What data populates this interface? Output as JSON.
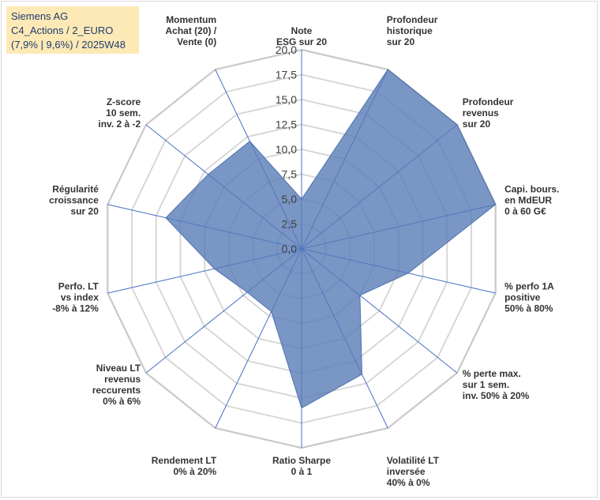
{
  "title_box": {
    "line1": "Siemens AG",
    "line2": "C4_Actions / 2_EURO",
    "line3": "(7,9% | 9,6%) / 2025W48"
  },
  "chart_data": {
    "type": "radar",
    "title": "Siemens AG — C4_Actions / 2_EURO — (7,9% | 9,6%) / 2025W48",
    "rlim": [
      0,
      20
    ],
    "ticks": [
      "0,0",
      "2,5",
      "5,0",
      "7,5",
      "10,0",
      "12,5",
      "15,0",
      "17,5",
      "20,0"
    ],
    "tick_values": [
      0,
      2.5,
      5,
      7.5,
      10,
      12.5,
      15,
      17.5,
      20
    ],
    "axes": [
      [
        "Note",
        "ESG sur 20"
      ],
      [
        "Profondeur",
        "historique",
        "sur 20"
      ],
      [
        "Profondeur",
        "revenus",
        "sur 20"
      ],
      [
        "Capi. bours.",
        "en MdEUR",
        "0 à 60 G€"
      ],
      [
        "% perfo 1A",
        "positive",
        "50% à 80%"
      ],
      [
        "% perte max.",
        "sur 1 sem.",
        "inv. 50% à 20%"
      ],
      [
        "Volatilité LT",
        "inversée",
        "40% à 0%"
      ],
      [
        "Ratio Sharpe",
        "0 à 1"
      ],
      [
        "Rendement LT",
        "0% à 20%"
      ],
      [
        "Niveau LT",
        "revenus",
        "reccurents",
        "0% à 6%"
      ],
      [
        "Perfo. LT",
        "vs index",
        "-8% à 12%"
      ],
      [
        "Régularité",
        "croissance",
        "sur 20"
      ],
      [
        "Z-score",
        "10 sem.",
        "inv. 2 à -2"
      ],
      [
        "Momentum",
        "Achat (20) /",
        "Vente (0)"
      ]
    ],
    "series": [
      {
        "name": "Siemens AG",
        "values": [
          5.0,
          20.0,
          20.0,
          20.0,
          11.0,
          7.5,
          14.0,
          16.0,
          7.0,
          7.0,
          9.0,
          14.0,
          12.0,
          12.0
        ],
        "color": "#5b7fb8"
      }
    ],
    "grid": true
  }
}
